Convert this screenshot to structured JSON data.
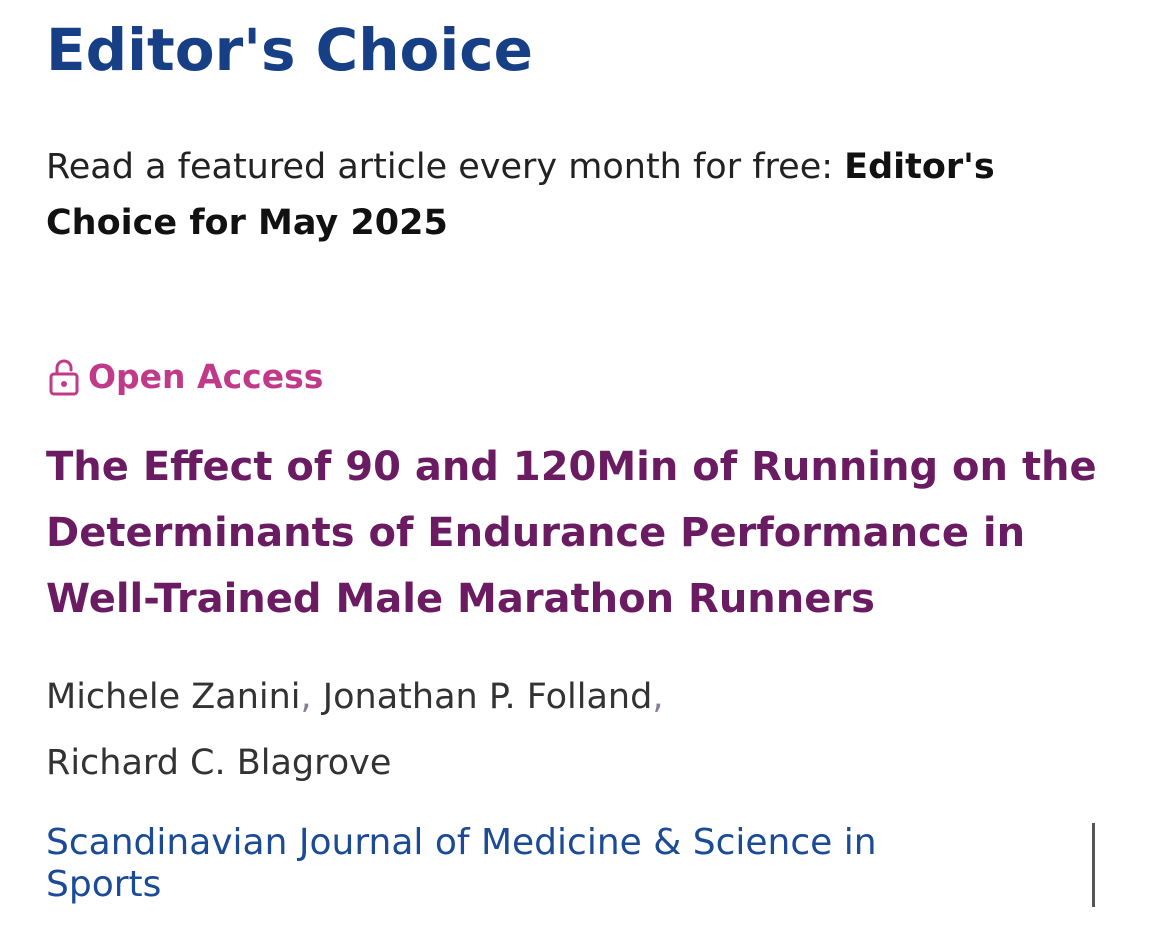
{
  "section": {
    "heading": "Editor's Choice",
    "intro_text": "Read a featured article every month for free: ",
    "intro_strong": "Editor's Choice for May 2025"
  },
  "article": {
    "access_label": "Open Access",
    "access_icon": "unlocked-padlock-icon",
    "title": "The Effect of 90 and 120Min of Running on the Determinants of Endurance Performance in Well-Trained Male Marathon Runners",
    "authors": [
      "Michele Zanini",
      "Jonathan P. Folland",
      "Richard C. Blagrove"
    ],
    "author_separator": ",",
    "journal": "Scandinavian Journal of Medicine & Science in Sports"
  },
  "colors": {
    "heading": "#173f85",
    "open_access": "#c13a8a",
    "title": "#6a1b62",
    "journal": "#1b4a96",
    "body_text": "#222222"
  }
}
